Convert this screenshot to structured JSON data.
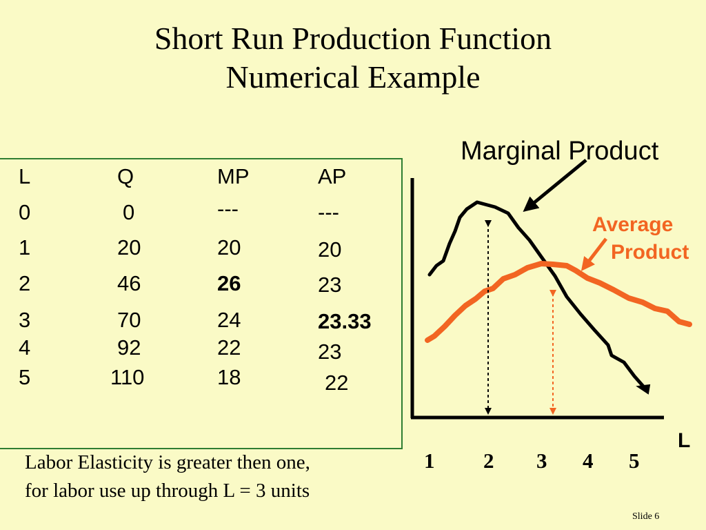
{
  "title": {
    "line1": "Short Run Production Function",
    "line2": "Numerical Example"
  },
  "table": {
    "headers": [
      "L",
      "Q",
      "MP",
      "AP"
    ],
    "rows": [
      {
        "L": "0",
        "Q": "0",
        "MP": "---",
        "AP": "---"
      },
      {
        "L": "1",
        "Q": "20",
        "MP": "20",
        "AP": "20"
      },
      {
        "L": "2",
        "Q": "46",
        "MP": "26",
        "AP": "23"
      },
      {
        "L": "3",
        "Q": "70",
        "MP": "24",
        "AP": "23.33"
      },
      {
        "L": "4",
        "Q": "92",
        "MP": "22",
        "AP": "23"
      },
      {
        "L": "5",
        "Q": "110",
        "MP": "18",
        "AP": "22"
      }
    ],
    "border_color": "#2E7D32"
  },
  "graph": {
    "mp_label": "Marginal Product",
    "ap_label_line1": "Average",
    "ap_label_line2": "Product",
    "x_axis_label": "L",
    "x_ticks": [
      "1",
      "2",
      "3",
      "4",
      "5"
    ],
    "mp_color": "#000000",
    "ap_color": "#F26522"
  },
  "note": {
    "line1": "Labor Elasticity is greater then one,",
    "line2": "for labor use up through L = 3 units"
  },
  "slide_number": "Slide 6"
}
